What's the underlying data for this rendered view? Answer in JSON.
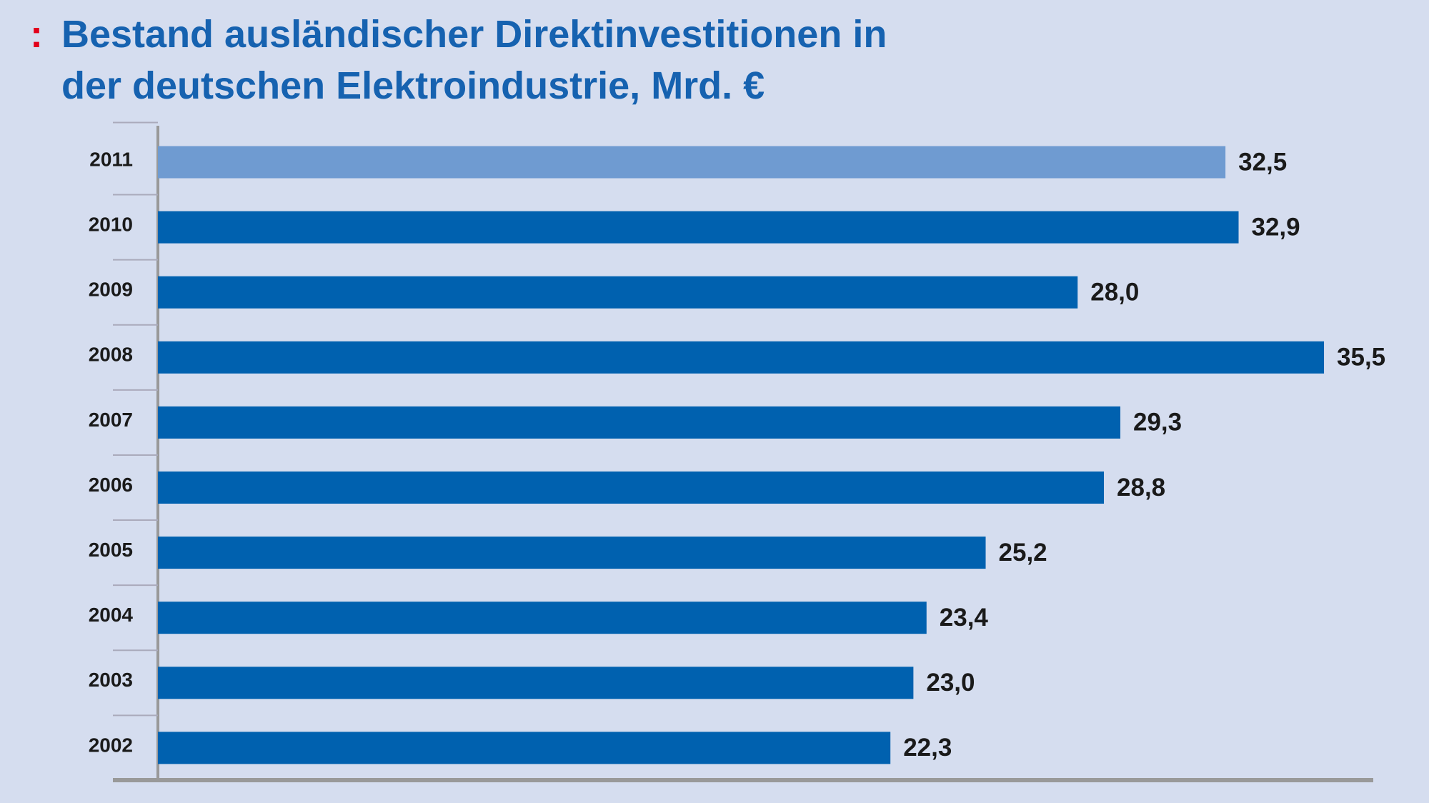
{
  "chart_data": {
    "type": "bar",
    "orientation": "horizontal",
    "marker": ":",
    "title": [
      "Bestand ausländischer Direktinvestitionen in",
      "der deutschen Elektroindustrie, Mrd. €"
    ],
    "categories": [
      "2011",
      "2010",
      "2009",
      "2008",
      "2007",
      "2006",
      "2005",
      "2004",
      "2003",
      "2002"
    ],
    "values": [
      32.5,
      32.9,
      28.0,
      35.5,
      29.3,
      28.8,
      25.2,
      23.4,
      23.0,
      22.3
    ],
    "value_labels": [
      "32,5",
      "32,9",
      "28,0",
      "35,5",
      "29,3",
      "28,8",
      "25,2",
      "23,4",
      "23,0",
      "22,3"
    ],
    "colors": [
      "#6f9bd1",
      "#0061af",
      "#0061af",
      "#0061af",
      "#0061af",
      "#0061af",
      "#0061af",
      "#0061af",
      "#0061af",
      "#0061af"
    ],
    "xlim": [
      0,
      37
    ]
  }
}
